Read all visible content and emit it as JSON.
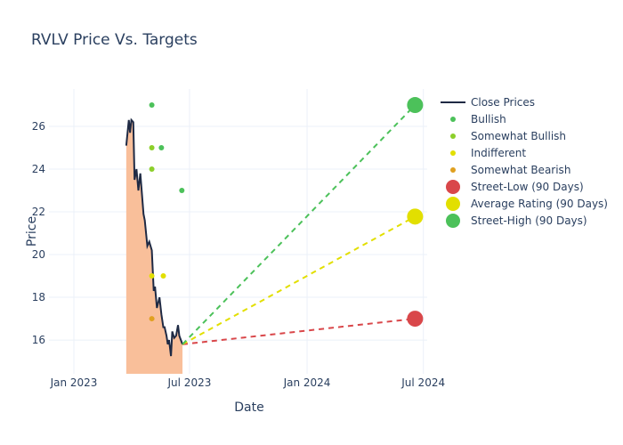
{
  "chart_data": {
    "type": "line",
    "title": "RVLV Price Vs. Targets",
    "xlabel": "Date",
    "ylabel": "Price",
    "xlim": [
      "2022-11-23",
      "2024-07-07"
    ],
    "ylim": [
      14.42,
      27.75
    ],
    "x_ticks": [
      {
        "date": "2023-01-01",
        "label": "Jan 2023"
      },
      {
        "date": "2023-07-01",
        "label": "Jul 2023"
      },
      {
        "date": "2024-01-01",
        "label": "Jan 2024"
      },
      {
        "date": "2024-07-01",
        "label": "Jul 2024"
      }
    ],
    "y_ticks": [
      16,
      18,
      20,
      22,
      24,
      26
    ],
    "grid": true,
    "legend_position": "right",
    "close_prices": {
      "name": "Close Prices",
      "color": "#1f2a44",
      "fill": "#f9bf9a",
      "points": [
        [
          "2023-03-24",
          25.1
        ],
        [
          "2023-03-28",
          26.3
        ],
        [
          "2023-03-30",
          25.7
        ],
        [
          "2023-04-01",
          26.3
        ],
        [
          "2023-04-04",
          26.2
        ],
        [
          "2023-04-06",
          23.5
        ],
        [
          "2023-04-09",
          24.0
        ],
        [
          "2023-04-12",
          23.0
        ],
        [
          "2023-04-15",
          23.8
        ],
        [
          "2023-04-20",
          21.9
        ],
        [
          "2023-04-22",
          21.6
        ],
        [
          "2023-04-26",
          20.4
        ],
        [
          "2023-04-29",
          20.6
        ],
        [
          "2023-05-03",
          20.2
        ],
        [
          "2023-05-06",
          18.3
        ],
        [
          "2023-05-08",
          18.5
        ],
        [
          "2023-05-11",
          17.5
        ],
        [
          "2023-05-15",
          18.0
        ],
        [
          "2023-05-18",
          17.2
        ],
        [
          "2023-05-21",
          16.6
        ],
        [
          "2023-05-23",
          16.6
        ],
        [
          "2023-05-26",
          16.2
        ],
        [
          "2023-05-28",
          15.8
        ],
        [
          "2023-05-30",
          16.0
        ],
        [
          "2023-06-02",
          15.25
        ],
        [
          "2023-06-04",
          16.4
        ],
        [
          "2023-06-07",
          16.1
        ],
        [
          "2023-06-10",
          16.2
        ],
        [
          "2023-06-13",
          16.7
        ],
        [
          "2023-06-15",
          16.2
        ],
        [
          "2023-06-20",
          15.8
        ]
      ]
    },
    "ratings": [
      {
        "name": "Bullish",
        "color": "#4cc15a",
        "points": [
          [
            "2023-05-03",
            27
          ],
          [
            "2023-05-18",
            25
          ],
          [
            "2023-06-19",
            23
          ]
        ]
      },
      {
        "name": "Somewhat Bullish",
        "color": "#8ccf2a",
        "points": [
          [
            "2023-05-03",
            25
          ],
          [
            "2023-05-03",
            24
          ]
        ]
      },
      {
        "name": "Indifferent",
        "color": "#e2df00",
        "points": [
          [
            "2023-05-03",
            19
          ],
          [
            "2023-05-21",
            19
          ]
        ]
      },
      {
        "name": "Somewhat Bearish",
        "color": "#e0a020",
        "points": [
          [
            "2023-05-03",
            17
          ]
        ]
      }
    ],
    "targets": {
      "start": [
        "2023-06-20",
        15.8
      ],
      "date": "2024-06-18",
      "series": [
        {
          "name": "Street-Low (90 Days)",
          "value": 17,
          "color": "#d9474a"
        },
        {
          "name": "Average Rating (90 Days)",
          "value": 21.78,
          "color": "#e2df00"
        },
        {
          "name": "Street-High (90 Days)",
          "value": 27,
          "color": "#4cc15a"
        }
      ]
    }
  }
}
